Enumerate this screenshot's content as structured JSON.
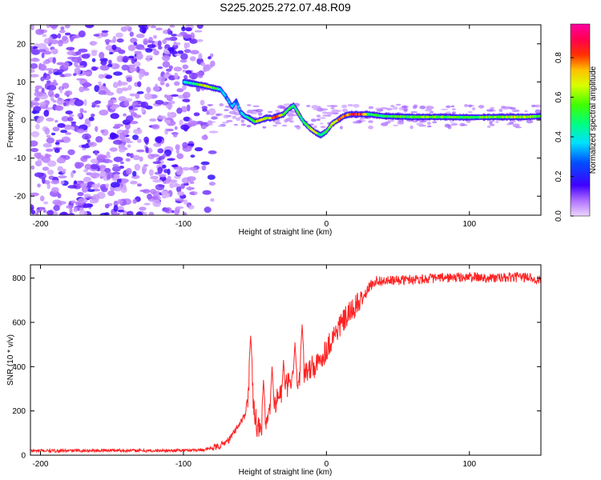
{
  "chart_data": [
    {
      "type": "heatmap",
      "title": "S225.2025.272.07.48.R09",
      "xlabel": "Height of straight line (km)",
      "ylabel": "Frequency (Hz)",
      "xlim": [
        -207,
        150
      ],
      "ylim": [
        -25,
        25
      ],
      "xticks": [
        -200,
        -100,
        0,
        100
      ],
      "yticks": [
        -20,
        -10,
        0,
        10,
        20
      ],
      "colorbar": {
        "label": "Normalized spectral amplitude",
        "range": [
          0.0,
          0.97
        ],
        "ticks": [
          0.0,
          0.2,
          0.4,
          0.6,
          0.8
        ],
        "colormap": "rainbow (light violet - blue - cyan - green - yellow - red - magenta)"
      },
      "noise_region_x": [
        -207,
        -78
      ],
      "ridge": {
        "x": [
          -100,
          -92,
          -85,
          -80,
          -74,
          -70,
          -66,
          -63,
          -60,
          -57,
          -54,
          -50,
          -46,
          -42,
          -38,
          -34,
          -30,
          -26,
          -23,
          -20,
          -16,
          -12,
          -8,
          -4,
          0,
          4,
          8,
          12,
          16,
          20,
          30,
          40,
          60,
          80,
          100,
          120,
          140,
          150
        ],
        "frequency": [
          10,
          9.5,
          9,
          8.5,
          8,
          6,
          3.5,
          5,
          2,
          1,
          0.5,
          -0.5,
          0,
          0.5,
          0.5,
          1,
          1.5,
          3,
          3.8,
          2,
          -0.5,
          -2,
          -3.2,
          -4,
          -3,
          -1,
          0,
          1,
          1.5,
          1.5,
          1.5,
          1,
          0.8,
          0.8,
          0.7,
          0.8,
          0.8,
          1
        ],
        "amplitude": [
          0.35,
          0.5,
          0.75,
          0.6,
          0.4,
          0.3,
          0.35,
          0.3,
          0.35,
          0.4,
          0.5,
          0.55,
          0.7,
          0.6,
          0.75,
          0.85,
          0.6,
          0.5,
          0.45,
          0.55,
          0.5,
          0.6,
          0.7,
          0.45,
          0.5,
          0.7,
          0.75,
          0.8,
          0.75,
          0.95,
          0.55,
          0.5,
          0.6,
          0.6,
          0.55,
          0.6,
          0.65,
          0.55
        ]
      }
    },
    {
      "type": "line",
      "xlabel": "Height of straight line (km)",
      "ylabel": "SNR (10 * v/v)",
      "xlim": [
        -207,
        150
      ],
      "ylim": [
        0,
        860
      ],
      "xticks": [
        -200,
        -100,
        0,
        100
      ],
      "yticks": [
        0,
        200,
        400,
        600,
        800
      ],
      "series": [
        {
          "name": "SNR",
          "color": "#ff2222",
          "x": [
            -207,
            -180,
            -150,
            -120,
            -100,
            -85,
            -75,
            -68,
            -62,
            -57,
            -53,
            -50,
            -48,
            -45,
            -42,
            -38,
            -34,
            -30,
            -25,
            -20,
            -15,
            -10,
            -5,
            0,
            5,
            10,
            15,
            20,
            25,
            30,
            35,
            40,
            50,
            60,
            80,
            100,
            120,
            140,
            150
          ],
          "values": [
            20,
            20,
            22,
            20,
            22,
            25,
            40,
            70,
            130,
            180,
            360,
            190,
            120,
            100,
            140,
            220,
            260,
            300,
            330,
            350,
            380,
            380,
            420,
            480,
            540,
            590,
            630,
            670,
            700,
            760,
            790,
            785,
            790,
            795,
            800,
            805,
            800,
            805,
            790
          ],
          "spikes": [
            [
              -53,
              540
            ],
            [
              -44,
              340
            ],
            [
              -38,
              400
            ],
            [
              -30,
              430
            ],
            [
              -22,
              510
            ],
            [
              -17,
              590
            ],
            [
              -10,
              450
            ],
            [
              -5,
              420
            ]
          ]
        }
      ]
    }
  ]
}
